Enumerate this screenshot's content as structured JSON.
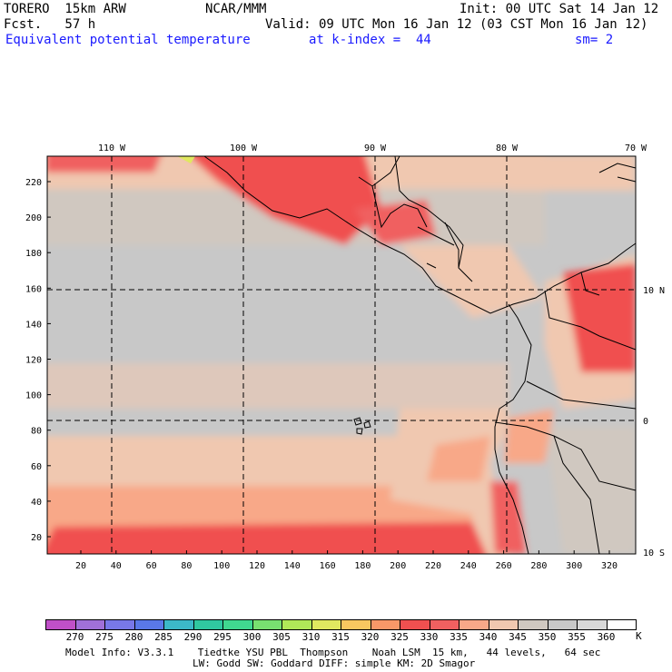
{
  "header": {
    "model": "TORERO  15km ARW",
    "center": "NCAR/MMM",
    "init": "Init: 00 UTC Sat 14 Jan 12",
    "fcst": "Fcst.   57 h",
    "valid": "Valid: 09 UTC Mon 16 Jan 12 (03 CST Mon 16 Jan 12)",
    "field": "Equivalent potential temperature",
    "level": "at k-index =  44",
    "smooth": "sm= 2"
  },
  "top_lon_labels": [
    "110 W",
    "100 W",
    "90 W",
    "80 W",
    "70 W"
  ],
  "right_lat_labels": [
    "10 N",
    "0",
    "10 S"
  ],
  "y_axis_ticks": [
    "20",
    "40",
    "60",
    "80",
    "100",
    "120",
    "140",
    "160",
    "180",
    "200",
    "220"
  ],
  "x_axis_ticks": [
    "20",
    "40",
    "60",
    "80",
    "100",
    "120",
    "140",
    "160",
    "180",
    "200",
    "220",
    "240",
    "260",
    "280",
    "300",
    "320"
  ],
  "colorbar": {
    "labels": [
      "270",
      "275",
      "280",
      "285",
      "290",
      "295",
      "300",
      "305",
      "310",
      "315",
      "320",
      "325",
      "330",
      "335",
      "340",
      "345",
      "350",
      "355",
      "360"
    ],
    "unit": "K",
    "colors": [
      "#c050c8",
      "#a070d8",
      "#7878e8",
      "#5a78e8",
      "#3cb8c8",
      "#30c8a0",
      "#40d890",
      "#78e070",
      "#b0e858",
      "#e0e860",
      "#f8c860",
      "#f89868",
      "#f05050",
      "#f06060",
      "#f8a888",
      "#f0c8b0",
      "#d0c8c0",
      "#c8c8c8",
      "#d8d8d8",
      "#ffffff"
    ]
  },
  "footer": {
    "line1": "Model Info: V3.3.1    Tiedtke YSU PBL  Thompson    Noah LSM  15 km,   44 levels,   64 sec",
    "line2": "LW: Godd SW: Goddard DIFF: simple KM: 2D Smagor"
  }
}
